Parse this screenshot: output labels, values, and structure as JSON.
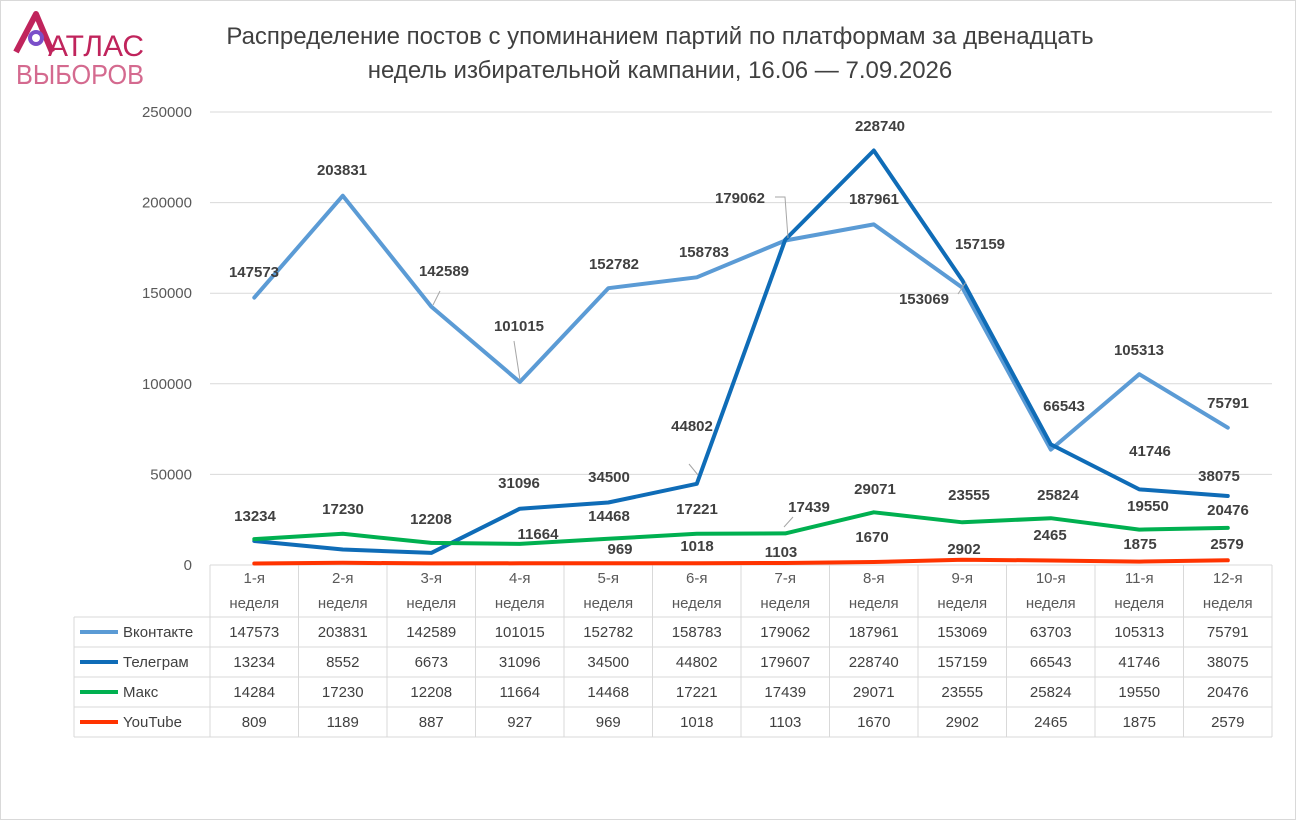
{
  "brand": {
    "line1": "АТЛАС",
    "line2": "ВЫБОРОВ"
  },
  "title": {
    "line1": "Распределение постов с упоминанием партий по платформам за двенадцать",
    "line2": "недель избирательной кампании, 16.06 — 7.09.2026"
  },
  "chart_data": {
    "type": "line",
    "categories": [
      [
        "1-я",
        "неделя"
      ],
      [
        "2-я",
        "неделя"
      ],
      [
        "3-я",
        "неделя"
      ],
      [
        "4-я",
        "неделя"
      ],
      [
        "5-я",
        "неделя"
      ],
      [
        "6-я",
        "неделя"
      ],
      [
        "7-я",
        "неделя"
      ],
      [
        "8-я",
        "неделя"
      ],
      [
        "9-я",
        "неделя"
      ],
      [
        "10-я",
        "неделя"
      ],
      [
        "11-я",
        "неделя"
      ],
      [
        "12-я",
        "неделя"
      ]
    ],
    "ylim": [
      0,
      250000
    ],
    "yticks": [
      0,
      50000,
      100000,
      150000,
      200000,
      250000
    ],
    "grid": true,
    "legend": "data table below chart",
    "series": [
      {
        "name": "Вконтакте",
        "color": "#5b9bd5",
        "values": [
          147573,
          203831,
          142589,
          101015,
          152782,
          158783,
          179062,
          187961,
          153069,
          63703,
          105313,
          75791
        ]
      },
      {
        "name": "Телеграм",
        "color": "#0f6cb7",
        "values": [
          13234,
          8552,
          6673,
          31096,
          34500,
          44802,
          179607,
          228740,
          157159,
          66543,
          41746,
          38075
        ]
      },
      {
        "name": "Макс",
        "color": "#00b050",
        "values": [
          14284,
          17230,
          12208,
          11664,
          14468,
          17221,
          17439,
          29071,
          23555,
          25824,
          19550,
          20476
        ]
      },
      {
        "name": "YouTube",
        "color": "#ff3300",
        "values": [
          809,
          1189,
          887,
          927,
          969,
          1018,
          1103,
          1670,
          2902,
          2465,
          1875,
          2579
        ]
      }
    ],
    "data_labels": [
      {
        "text": "147573"
      },
      {
        "text": "203831"
      },
      {
        "text": "142589",
        "leader": true
      },
      {
        "text": "101015",
        "leader": true
      },
      {
        "text": "152782"
      },
      {
        "text": "158783"
      },
      {
        "text": "179062",
        "leader": true
      },
      {
        "text": "187961"
      },
      {
        "text": "153069",
        "leader": true
      },
      {
        "text": "105313"
      },
      {
        "text": "75791"
      },
      {
        "text": "13234"
      },
      {
        "text": "31096"
      },
      {
        "text": "34500"
      },
      {
        "text": "44802",
        "leader": true
      },
      {
        "text": "228740"
      },
      {
        "text": "157159"
      },
      {
        "text": "66543"
      },
      {
        "text": "41746"
      },
      {
        "text": "38075"
      },
      {
        "text": "17230"
      },
      {
        "text": "12208"
      },
      {
        "text": "11664"
      },
      {
        "text": "14468"
      },
      {
        "text": "17221"
      },
      {
        "text": "17439",
        "leader": true
      },
      {
        "text": "29071"
      },
      {
        "text": "23555"
      },
      {
        "text": "25824"
      },
      {
        "text": "19550"
      },
      {
        "text": "20476"
      },
      {
        "text": "969"
      },
      {
        "text": "1018"
      },
      {
        "text": "1103"
      },
      {
        "text": "1670"
      },
      {
        "text": "2902"
      },
      {
        "text": "2465"
      },
      {
        "text": "1875"
      },
      {
        "text": "2579"
      }
    ]
  }
}
